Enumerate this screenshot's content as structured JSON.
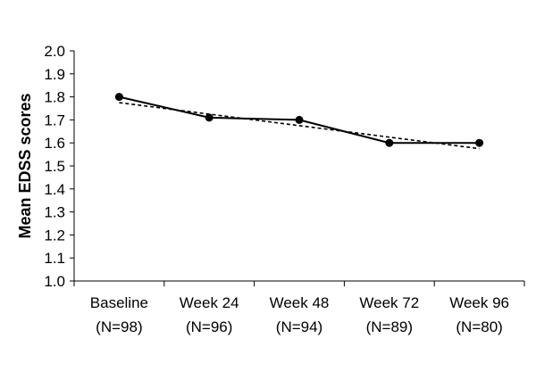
{
  "chart_data": {
    "type": "line",
    "title": "",
    "xlabel": "",
    "ylabel": "Mean EDSS scores",
    "categories": [
      {
        "name": "Baseline",
        "n": "(N=98)"
      },
      {
        "name": "Week 24",
        "n": "(N=96)"
      },
      {
        "name": "Week 48",
        "n": "(N=94)"
      },
      {
        "name": "Week 72",
        "n": "(N=89)"
      },
      {
        "name": "Week 96",
        "n": "(N=80)"
      }
    ],
    "yticks": [
      "1.0",
      "1.1",
      "1.2",
      "1.3",
      "1.4",
      "1.5",
      "1.6",
      "1.7",
      "1.8",
      "1.9",
      "2.0"
    ],
    "ylim": [
      1.0,
      2.0
    ],
    "grid": false,
    "series": [
      {
        "values": [
          1.8,
          1.71,
          1.7,
          1.6,
          1.6
        ],
        "style": "solid",
        "markers": true,
        "color": "#000000"
      }
    ],
    "trendline": {
      "style": "dotted",
      "color": "#000000",
      "start": 1.775,
      "end": 1.575
    }
  }
}
